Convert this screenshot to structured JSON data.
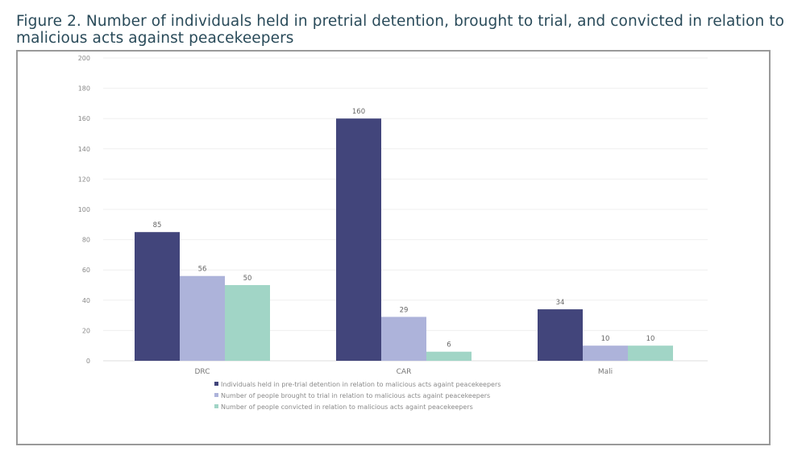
{
  "title": "Figure 2. Number of individuals held in pretrial detention, brought to trial, and convicted in relation to malicious acts against peacekeepers",
  "chart_data": {
    "type": "bar",
    "title": "Figure 2. Number of individuals held in pretrial detention, brought to trial, and convicted in relation to malicious acts against peacekeepers",
    "xlabel": "",
    "ylabel": "",
    "categories": [
      "DRC",
      "CAR",
      "Mali"
    ],
    "series": [
      {
        "name": "Individuals held in pre-trial detention in relation to malicious acts againt peacekeepers",
        "color": "#42457b",
        "values": [
          85,
          160,
          34
        ]
      },
      {
        "name": "Number of people brought to trial in relation to malicious acts againt peacekeepers",
        "color": "#adb3da",
        "values": [
          56,
          29,
          10
        ]
      },
      {
        "name": "Number of people convicted in relation to malicious acts againt peacekeepers",
        "color": "#a1d5c6",
        "values": [
          50,
          6,
          10
        ]
      }
    ],
    "ylim": [
      0,
      200
    ],
    "yticks": [
      0,
      20,
      40,
      60,
      80,
      100,
      120,
      140,
      160,
      180,
      200
    ],
    "grid": true,
    "legend_position": "bottom",
    "data_labels": true
  }
}
